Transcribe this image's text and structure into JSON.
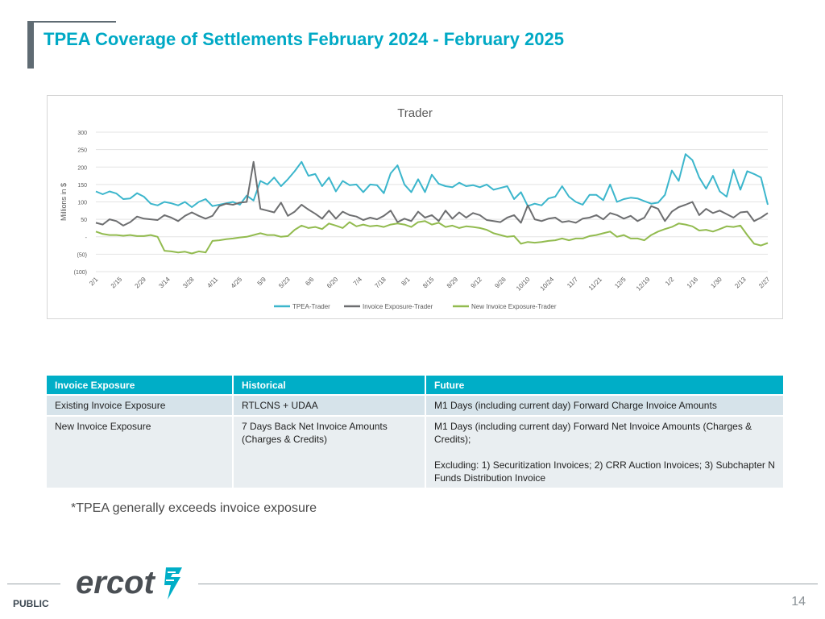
{
  "slide": {
    "title": "TPEA Coverage of Settlements February 2024 - February 2025",
    "footnote": "*TPEA generally exceeds invoice exposure",
    "classification": "PUBLIC",
    "page_number": "14",
    "logo_text": "ercot"
  },
  "colors": {
    "title": "#00a9c5",
    "table_header": "#00aec7",
    "series_tpea": "#3cb6cc",
    "series_invoice": "#6d6e70",
    "series_new_invoice": "#92bb4f"
  },
  "table": {
    "headers": [
      "Invoice Exposure",
      "Historical",
      "Future"
    ],
    "rows": [
      {
        "exposure": "Existing Invoice Exposure",
        "historical": "RTLCNS + UDAA",
        "future": [
          "M1 Days (including current day) Forward Charge Invoice Amounts"
        ]
      },
      {
        "exposure": "New Invoice Exposure",
        "historical": "7 Days Back Net Invoice Amounts (Charges & Credits)",
        "future": [
          "M1 Days (including current day)  Forward Net Invoice Amounts (Charges & Credits);",
          "Excluding: 1) Securitization Invoices; 2) CRR Auction Invoices; 3) Subchapter N Funds Distribution Invoice"
        ]
      }
    ]
  },
  "chart_data": {
    "type": "line",
    "title": "Trader",
    "ylabel": "Millions in $",
    "ylim": [
      -100,
      300
    ],
    "yticks": [
      300,
      250,
      200,
      150,
      100,
      50,
      0,
      -50,
      -100
    ],
    "ytick_labels": [
      "300",
      "250",
      "200",
      "150",
      "100",
      "50",
      "-",
      "(50)",
      "(100)"
    ],
    "x_tick_labels": [
      "2/1",
      "2/15",
      "2/29",
      "3/14",
      "3/28",
      "4/11",
      "4/25",
      "5/9",
      "5/23",
      "6/6",
      "6/20",
      "7/4",
      "7/18",
      "8/1",
      "8/15",
      "8/29",
      "9/12",
      "9/26",
      "10/10",
      "10/24",
      "11/7",
      "11/21",
      "12/5",
      "12/19",
      "1/2",
      "1/16",
      "1/30",
      "2/13",
      "2/27"
    ],
    "grid": true,
    "legend": "bottom",
    "series": [
      {
        "name": "TPEA-Trader",
        "values": [
          130,
          122,
          130,
          124,
          108,
          110,
          125,
          115,
          95,
          90,
          100,
          96,
          90,
          100,
          85,
          100,
          108,
          88,
          92,
          96,
          100,
          92,
          118,
          104,
          160,
          150,
          170,
          145,
          165,
          188,
          215,
          175,
          180,
          145,
          170,
          130,
          160,
          148,
          150,
          128,
          150,
          148,
          125,
          182,
          205,
          150,
          128,
          165,
          128,
          178,
          152,
          145,
          142,
          155,
          145,
          148,
          142,
          150,
          135,
          140,
          145,
          108,
          128,
          88,
          95,
          90,
          110,
          115,
          145,
          115,
          100,
          92,
          120,
          120,
          105,
          150,
          100,
          108,
          112,
          110,
          102,
          95,
          98,
          120,
          190,
          160,
          237,
          220,
          170,
          138,
          175,
          130,
          115,
          192,
          135,
          188,
          180,
          170,
          92
        ]
      },
      {
        "name": "Invoice Exposure-Trader",
        "values": [
          40,
          35,
          50,
          45,
          32,
          42,
          58,
          52,
          50,
          48,
          62,
          55,
          45,
          60,
          70,
          60,
          52,
          60,
          88,
          95,
          92,
          98,
          100,
          215,
          80,
          75,
          70,
          98,
          60,
          72,
          92,
          78,
          66,
          52,
          75,
          52,
          72,
          62,
          58,
          48,
          55,
          50,
          60,
          75,
          42,
          52,
          45,
          72,
          55,
          62,
          45,
          75,
          52,
          70,
          55,
          68,
          62,
          48,
          45,
          42,
          55,
          62,
          40,
          90,
          50,
          45,
          52,
          55,
          42,
          45,
          40,
          52,
          55,
          62,
          50,
          68,
          62,
          52,
          60,
          45,
          55,
          88,
          80,
          45,
          72,
          85,
          92,
          100,
          62,
          80,
          68,
          75,
          65,
          55,
          70,
          72,
          45,
          55,
          68
        ]
      },
      {
        "name": "New Invoice Exposure-Trader",
        "values": [
          15,
          8,
          5,
          5,
          3,
          5,
          2,
          2,
          5,
          0,
          -40,
          -42,
          -45,
          -43,
          -48,
          -42,
          -45,
          -12,
          -10,
          -7,
          -5,
          -2,
          0,
          5,
          10,
          5,
          5,
          0,
          2,
          20,
          32,
          25,
          28,
          22,
          38,
          32,
          25,
          42,
          30,
          35,
          30,
          32,
          28,
          35,
          38,
          35,
          28,
          42,
          45,
          35,
          40,
          28,
          32,
          25,
          30,
          28,
          25,
          20,
          10,
          5,
          0,
          2,
          -20,
          -15,
          -17,
          -15,
          -12,
          -10,
          -5,
          -10,
          -5,
          -5,
          2,
          5,
          10,
          15,
          0,
          5,
          -5,
          -5,
          -10,
          5,
          15,
          22,
          28,
          38,
          35,
          30,
          18,
          20,
          15,
          22,
          30,
          28,
          32,
          5,
          -20,
          -25,
          -18
        ]
      }
    ]
  }
}
